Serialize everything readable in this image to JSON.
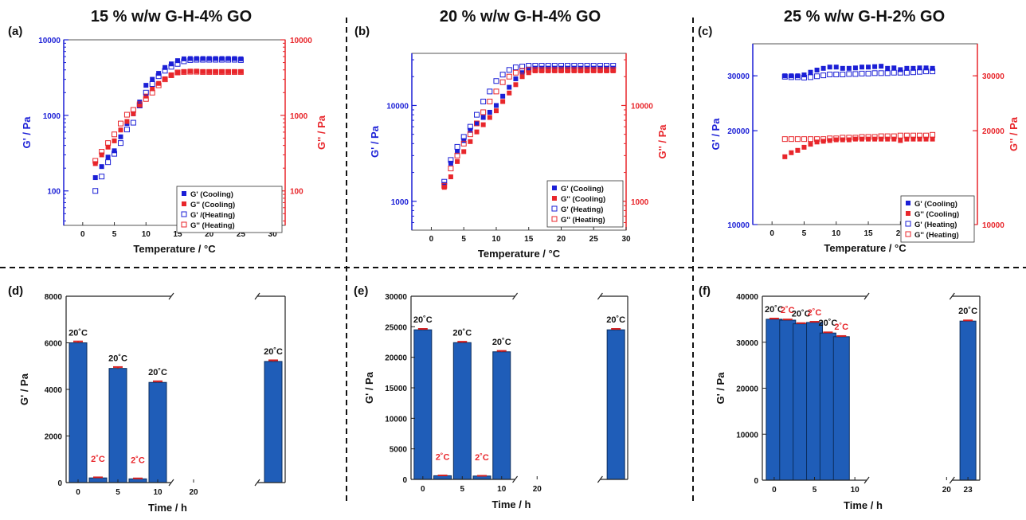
{
  "colors": {
    "blue": "#1b1fd6",
    "red": "#e8262b",
    "bar": "#1f5db8",
    "bar_edge": "#0b2d5e",
    "cap": "#d42020",
    "text": "#111111"
  },
  "headers": [
    "15 % w/w G-H-4% GO",
    "20 % w/w G-H-4% GO",
    "25 % w/w G-H-2% GO"
  ],
  "chart_data": [
    {
      "id": "a",
      "panel_label": "(a)",
      "type": "scatter",
      "xlabel": "Temperature / °C",
      "ylabel": "G' / Pa",
      "y2label": "G'' / Pa",
      "xlim": [
        -3,
        32
      ],
      "xticks": [
        0,
        5,
        10,
        15,
        20,
        25,
        30
      ],
      "yscale": "log",
      "ylim": [
        35,
        10000
      ],
      "yticks": [
        100,
        1000,
        10000
      ],
      "yticklabels": [
        "100",
        "1000",
        "10000"
      ],
      "y2ticklabels": [
        "100",
        "1000",
        "10000"
      ],
      "legend_position": "bottom-right",
      "series": [
        {
          "name": "G' (Cooling)",
          "color": "blue",
          "marker": "filled",
          "axis": "left",
          "x": [
            2,
            3,
            4,
            5,
            6,
            7,
            8,
            9,
            10,
            11,
            12,
            13,
            14,
            15,
            16,
            17,
            18,
            19,
            20,
            21,
            22,
            23,
            24,
            25
          ],
          "y": [
            150,
            210,
            280,
            340,
            520,
            780,
            1050,
            1500,
            2500,
            3000,
            3600,
            4300,
            4800,
            5300,
            5600,
            5650,
            5650,
            5650,
            5650,
            5650,
            5650,
            5650,
            5650,
            5600
          ]
        },
        {
          "name": "G'' (Cooling)",
          "color": "red",
          "marker": "filled",
          "axis": "right",
          "x": [
            2,
            3,
            4,
            5,
            6,
            7,
            8,
            9,
            10,
            11,
            12,
            13,
            14,
            15,
            16,
            17,
            18,
            19,
            20,
            21,
            22,
            23,
            24,
            25
          ],
          "y": [
            230,
            300,
            380,
            460,
            640,
            830,
            1050,
            1350,
            1800,
            2250,
            2650,
            3050,
            3400,
            3650,
            3800,
            3850,
            3850,
            3800,
            3800,
            3800,
            3800,
            3800,
            3800,
            3800
          ]
        },
        {
          "name": "G' /(Heating)",
          "color": "blue",
          "marker": "open",
          "axis": "left",
          "x": [
            2,
            3,
            4,
            5,
            6,
            7,
            8,
            9,
            10,
            11,
            12,
            13,
            14,
            15,
            16,
            17,
            18,
            19,
            20,
            21,
            22,
            23,
            24,
            25
          ],
          "y": [
            100,
            155,
            240,
            310,
            430,
            650,
            800,
            1350,
            2000,
            2600,
            3300,
            3900,
            4400,
            4800,
            5200,
            5400,
            5450,
            5450,
            5450,
            5450,
            5450,
            5450,
            5450,
            5400
          ]
        },
        {
          "name": "G'' (Heating)",
          "color": "red",
          "marker": "open",
          "axis": "right",
          "x": [
            2,
            3,
            4,
            5,
            6,
            7,
            8,
            9,
            10,
            11,
            12,
            13,
            14,
            15,
            16,
            17,
            18,
            19,
            20,
            21,
            22,
            23,
            24,
            25
          ],
          "y": [
            250,
            330,
            430,
            560,
            780,
            1020,
            1180,
            1400,
            1650,
            2000,
            2500,
            3000,
            3400,
            3700,
            3750,
            3780,
            3780,
            3750,
            3750,
            3750,
            3750,
            3750,
            3750,
            3750
          ]
        }
      ]
    },
    {
      "id": "b",
      "panel_label": "(b)",
      "type": "scatter",
      "xlabel": "Temperature / °C",
      "ylabel": "G' / Pa",
      "y2label": "G'' / Pa",
      "xlim": [
        -3,
        30
      ],
      "xticks": [
        0,
        5,
        10,
        15,
        20,
        25,
        30
      ],
      "yscale": "log",
      "ylim": [
        500,
        35000
      ],
      "yticks": [
        1000,
        10000
      ],
      "yticklabels": [
        "1000",
        "10000"
      ],
      "y2ticklabels": [
        "1000",
        "10000"
      ],
      "legend_position": "bottom-right",
      "series": [
        {
          "name": "G' (Cooling)",
          "color": "blue",
          "marker": "filled",
          "axis": "left",
          "x": [
            2,
            3,
            4,
            5,
            6,
            7,
            8,
            9,
            10,
            11,
            12,
            13,
            14,
            15,
            16,
            17,
            18,
            19,
            20,
            21,
            22,
            23,
            24,
            25,
            26,
            27,
            28
          ],
          "y": [
            1500,
            2500,
            3300,
            4300,
            5500,
            6500,
            7500,
            8500,
            10000,
            12500,
            15500,
            19000,
            22000,
            24000,
            24500,
            24500,
            24500,
            24500,
            24500,
            24500,
            24500,
            24500,
            24500,
            24500,
            24500,
            24500,
            24500
          ]
        },
        {
          "name": "G'' (Cooling)",
          "color": "red",
          "marker": "filled",
          "axis": "right",
          "x": [
            2,
            3,
            4,
            5,
            6,
            7,
            8,
            9,
            10,
            11,
            12,
            13,
            14,
            15,
            16,
            17,
            18,
            19,
            20,
            21,
            22,
            23,
            24,
            25,
            26,
            27,
            28
          ],
          "y": [
            1400,
            1800,
            2600,
            3300,
            4200,
            5300,
            6300,
            7500,
            8800,
            11000,
            13500,
            16500,
            20000,
            22000,
            23000,
            23000,
            23000,
            23000,
            23000,
            23000,
            23000,
            23000,
            23000,
            23000,
            23000,
            23000,
            23000
          ]
        },
        {
          "name": "G' (Heating)",
          "color": "blue",
          "marker": "open",
          "axis": "left",
          "x": [
            2,
            3,
            4,
            5,
            6,
            7,
            8,
            9,
            10,
            11,
            12,
            13,
            14,
            15,
            16,
            17,
            18,
            19,
            20,
            21,
            22,
            23,
            24,
            25,
            26,
            27,
            28
          ],
          "y": [
            1600,
            2700,
            3700,
            4700,
            6000,
            8000,
            11000,
            14000,
            18000,
            21000,
            23500,
            25000,
            25500,
            26000,
            26000,
            26000,
            26000,
            26000,
            26000,
            26000,
            26000,
            26000,
            26000,
            26000,
            26000,
            26000,
            26000
          ]
        },
        {
          "name": "G'' (Heating)",
          "color": "red",
          "marker": "open",
          "axis": "right",
          "x": [
            2,
            3,
            4,
            5,
            6,
            7,
            8,
            9,
            10,
            11,
            12,
            13,
            14,
            15,
            16,
            17,
            18,
            19,
            20,
            21,
            22,
            23,
            24,
            25,
            26,
            27,
            28
          ],
          "y": [
            1450,
            2200,
            3000,
            4000,
            5000,
            6500,
            8500,
            11000,
            14000,
            17500,
            20000,
            22000,
            23000,
            23500,
            23500,
            23500,
            23500,
            23500,
            23500,
            23500,
            23500,
            23500,
            23500,
            23500,
            23500,
            23500,
            23500
          ]
        }
      ]
    },
    {
      "id": "c",
      "panel_label": "(c)",
      "type": "scatter",
      "xlabel": "Temperature / °C",
      "ylabel": "G' / Pa",
      "y2label": "G'' / Pa",
      "xlim": [
        -3,
        32
      ],
      "xticks": [
        0,
        5,
        10,
        15,
        20,
        25,
        30
      ],
      "yscale": "log",
      "ylim": [
        10000,
        38000
      ],
      "yticks": [
        10000,
        20000,
        30000
      ],
      "yticklabels": [
        "10000",
        "20000",
        "30000"
      ],
      "y2ticklabels": [
        "10000",
        "20000",
        "30000"
      ],
      "legend_position": "bottom-right",
      "series": [
        {
          "name": "G' (Cooling)",
          "color": "blue",
          "marker": "filled",
          "axis": "left",
          "x": [
            2,
            3,
            4,
            5,
            6,
            7,
            8,
            9,
            10,
            11,
            12,
            13,
            14,
            15,
            16,
            17,
            18,
            19,
            20,
            21,
            22,
            23,
            24,
            25
          ],
          "y": [
            30000,
            30000,
            30000,
            30200,
            30800,
            31300,
            31700,
            32000,
            32000,
            31700,
            31700,
            31800,
            32000,
            32000,
            32100,
            32200,
            31700,
            31800,
            31400,
            31700,
            31700,
            31800,
            31800,
            31700
          ]
        },
        {
          "name": "G'' (Cooling)",
          "color": "red",
          "marker": "filled",
          "axis": "right",
          "x": [
            2,
            3,
            4,
            5,
            6,
            7,
            8,
            9,
            10,
            11,
            12,
            13,
            14,
            15,
            16,
            17,
            18,
            19,
            20,
            21,
            22,
            23,
            24,
            25
          ],
          "y": [
            16500,
            17000,
            17300,
            17700,
            18100,
            18400,
            18500,
            18600,
            18700,
            18700,
            18700,
            18800,
            18800,
            18800,
            18800,
            18800,
            18800,
            18800,
            18600,
            18800,
            18800,
            18800,
            18800,
            18800
          ]
        },
        {
          "name": "G' (Heating)",
          "color": "blue",
          "marker": "open",
          "axis": "left",
          "x": [
            2,
            3,
            4,
            5,
            6,
            7,
            8,
            9,
            10,
            11,
            12,
            13,
            14,
            15,
            16,
            17,
            18,
            19,
            20,
            21,
            22,
            23,
            24,
            25
          ],
          "y": [
            29800,
            29700,
            29700,
            29600,
            29700,
            29900,
            30100,
            30300,
            30300,
            30300,
            30400,
            30400,
            30500,
            30500,
            30600,
            30600,
            30600,
            30700,
            30700,
            30700,
            30800,
            30900,
            31000,
            31000
          ]
        },
        {
          "name": "G'' (Heating)",
          "color": "red",
          "marker": "open",
          "axis": "right",
          "x": [
            2,
            3,
            4,
            5,
            6,
            7,
            8,
            9,
            10,
            11,
            12,
            13,
            14,
            15,
            16,
            17,
            18,
            19,
            20,
            21,
            22,
            23,
            24,
            25
          ],
          "y": [
            18800,
            18800,
            18800,
            18800,
            18800,
            18800,
            18800,
            18900,
            18900,
            19000,
            19000,
            19000,
            19100,
            19100,
            19100,
            19200,
            19200,
            19200,
            19300,
            19300,
            19300,
            19300,
            19300,
            19400
          ]
        }
      ]
    },
    {
      "id": "d",
      "panel_label": "(d)",
      "type": "bar",
      "xlabel": "Time / h",
      "ylabel": "G' / Pa",
      "ylim": [
        0,
        8000
      ],
      "yticks": [
        0,
        2000,
        4000,
        6000,
        8000
      ],
      "yticklabels": [
        "0",
        "2000",
        "4000",
        "6000",
        "8000"
      ],
      "xlim": [
        -1.5,
        26
      ],
      "axis_break_after": 11.7,
      "axis_break_before": 22.5,
      "xticks": [
        0,
        5,
        10,
        20
      ],
      "xticklabels": [
        "0",
        "5",
        "10",
        "20"
      ],
      "x": [
        0,
        2.5,
        5,
        7.5,
        10,
        24.5
      ],
      "values": [
        6000,
        200,
        4900,
        160,
        4300,
        5200
      ],
      "errors": [
        60,
        25,
        60,
        20,
        50,
        50
      ],
      "labels": [
        "20˚C",
        "2˚C",
        "20˚C",
        "2˚C",
        "20˚C",
        "20˚C"
      ],
      "label_colors": [
        "text",
        "red",
        "text",
        "red",
        "text",
        "text"
      ]
    },
    {
      "id": "e",
      "panel_label": "(e)",
      "type": "bar",
      "xlabel": "Time / h",
      "ylabel": "G' / Pa",
      "ylim": [
        0,
        30000
      ],
      "yticks": [
        0,
        5000,
        10000,
        15000,
        20000,
        25000,
        30000
      ],
      "yticklabels": [
        "0",
        "5000",
        "10000",
        "15000",
        "20000",
        "25000",
        "30000"
      ],
      "xlim": [
        -1.5,
        26
      ],
      "axis_break_after": 11.7,
      "axis_break_before": 22.5,
      "xticks": [
        0,
        5,
        10,
        20
      ],
      "xticklabels": [
        "0",
        "5",
        "10",
        "20"
      ],
      "x": [
        0,
        2.5,
        5,
        7.5,
        10,
        24.5
      ],
      "values": [
        24500,
        600,
        22400,
        550,
        20900,
        24500
      ],
      "errors": [
        150,
        50,
        150,
        40,
        150,
        150
      ],
      "labels": [
        "20˚C",
        "2˚C",
        "20˚C",
        "2˚C",
        "20˚C",
        "20˚C"
      ],
      "label_colors": [
        "text",
        "red",
        "text",
        "red",
        "text",
        "text"
      ]
    },
    {
      "id": "f",
      "panel_label": "(f)",
      "type": "bar",
      "xlabel": "Time / h",
      "ylabel": "G' / Pa",
      "ylim": [
        0,
        40000
      ],
      "yticks": [
        0,
        10000,
        20000,
        30000,
        40000
      ],
      "yticklabels": [
        "0",
        "10000",
        "20000",
        "30000",
        "40000"
      ],
      "xlim": [
        -1.5,
        26
      ],
      "axis_break_after": 11.7,
      "axis_break_before": 22.5,
      "xticks": [
        0,
        5,
        10,
        20,
        23
      ],
      "xticklabels": [
        "0",
        "5",
        "10",
        "20",
        "23"
      ],
      "x": [
        0,
        1.7,
        3.4,
        5.1,
        6.8,
        8.5,
        24.5
      ],
      "values": [
        35000,
        34800,
        34000,
        34300,
        32000,
        31200,
        34600
      ],
      "errors": [
        150,
        150,
        150,
        150,
        150,
        150,
        150
      ],
      "labels": [
        "20˚C",
        "2˚C",
        "20˚C",
        "2˚C",
        "20˚C",
        "2˚C",
        "20˚C"
      ],
      "label_colors": [
        "text",
        "red",
        "text",
        "red",
        "text",
        "red",
        "text"
      ]
    }
  ]
}
